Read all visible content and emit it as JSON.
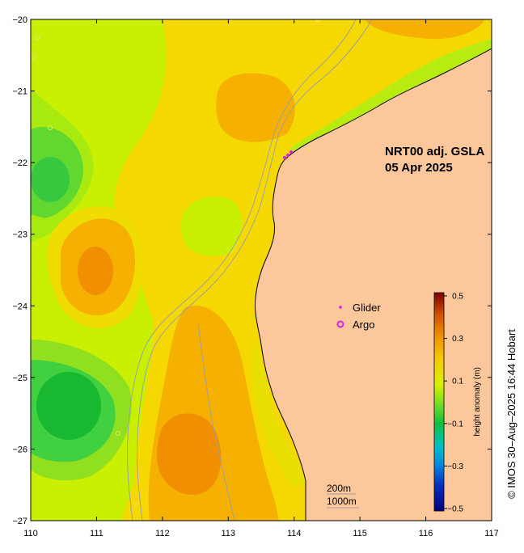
{
  "map": {
    "title_line1": "NRT00 adj. GSLA",
    "title_line2": "05 Apr 2025",
    "lon_ticks": [
      "110",
      "111",
      "112",
      "113",
      "114",
      "115",
      "116",
      "117"
    ],
    "lat_ticks": [
      "-20",
      "-21",
      "-22",
      "-23",
      "-24",
      "-25",
      "-26",
      "-27"
    ],
    "lon_range": [
      110,
      117
    ],
    "lat_range": [
      -27,
      -20
    ],
    "land_color": "#fcc89b",
    "depth_contours": [
      "200m",
      "1000m"
    ]
  },
  "legend": {
    "glider_label": "Glider",
    "argo_label": "Argo",
    "glider_marker": "•",
    "argo_marker": "o",
    "marker_color": "#e020e0"
  },
  "colorbar": {
    "title": "height anomaly (m)",
    "tick_labels": [
      "0.5",
      "0.3",
      "0.1",
      "−0.1",
      "−0.3",
      "−0.5"
    ],
    "range": [
      -0.5,
      0.5
    ]
  },
  "credit": "© IMOS 30–Aug–2025 16:44 Hobart"
}
